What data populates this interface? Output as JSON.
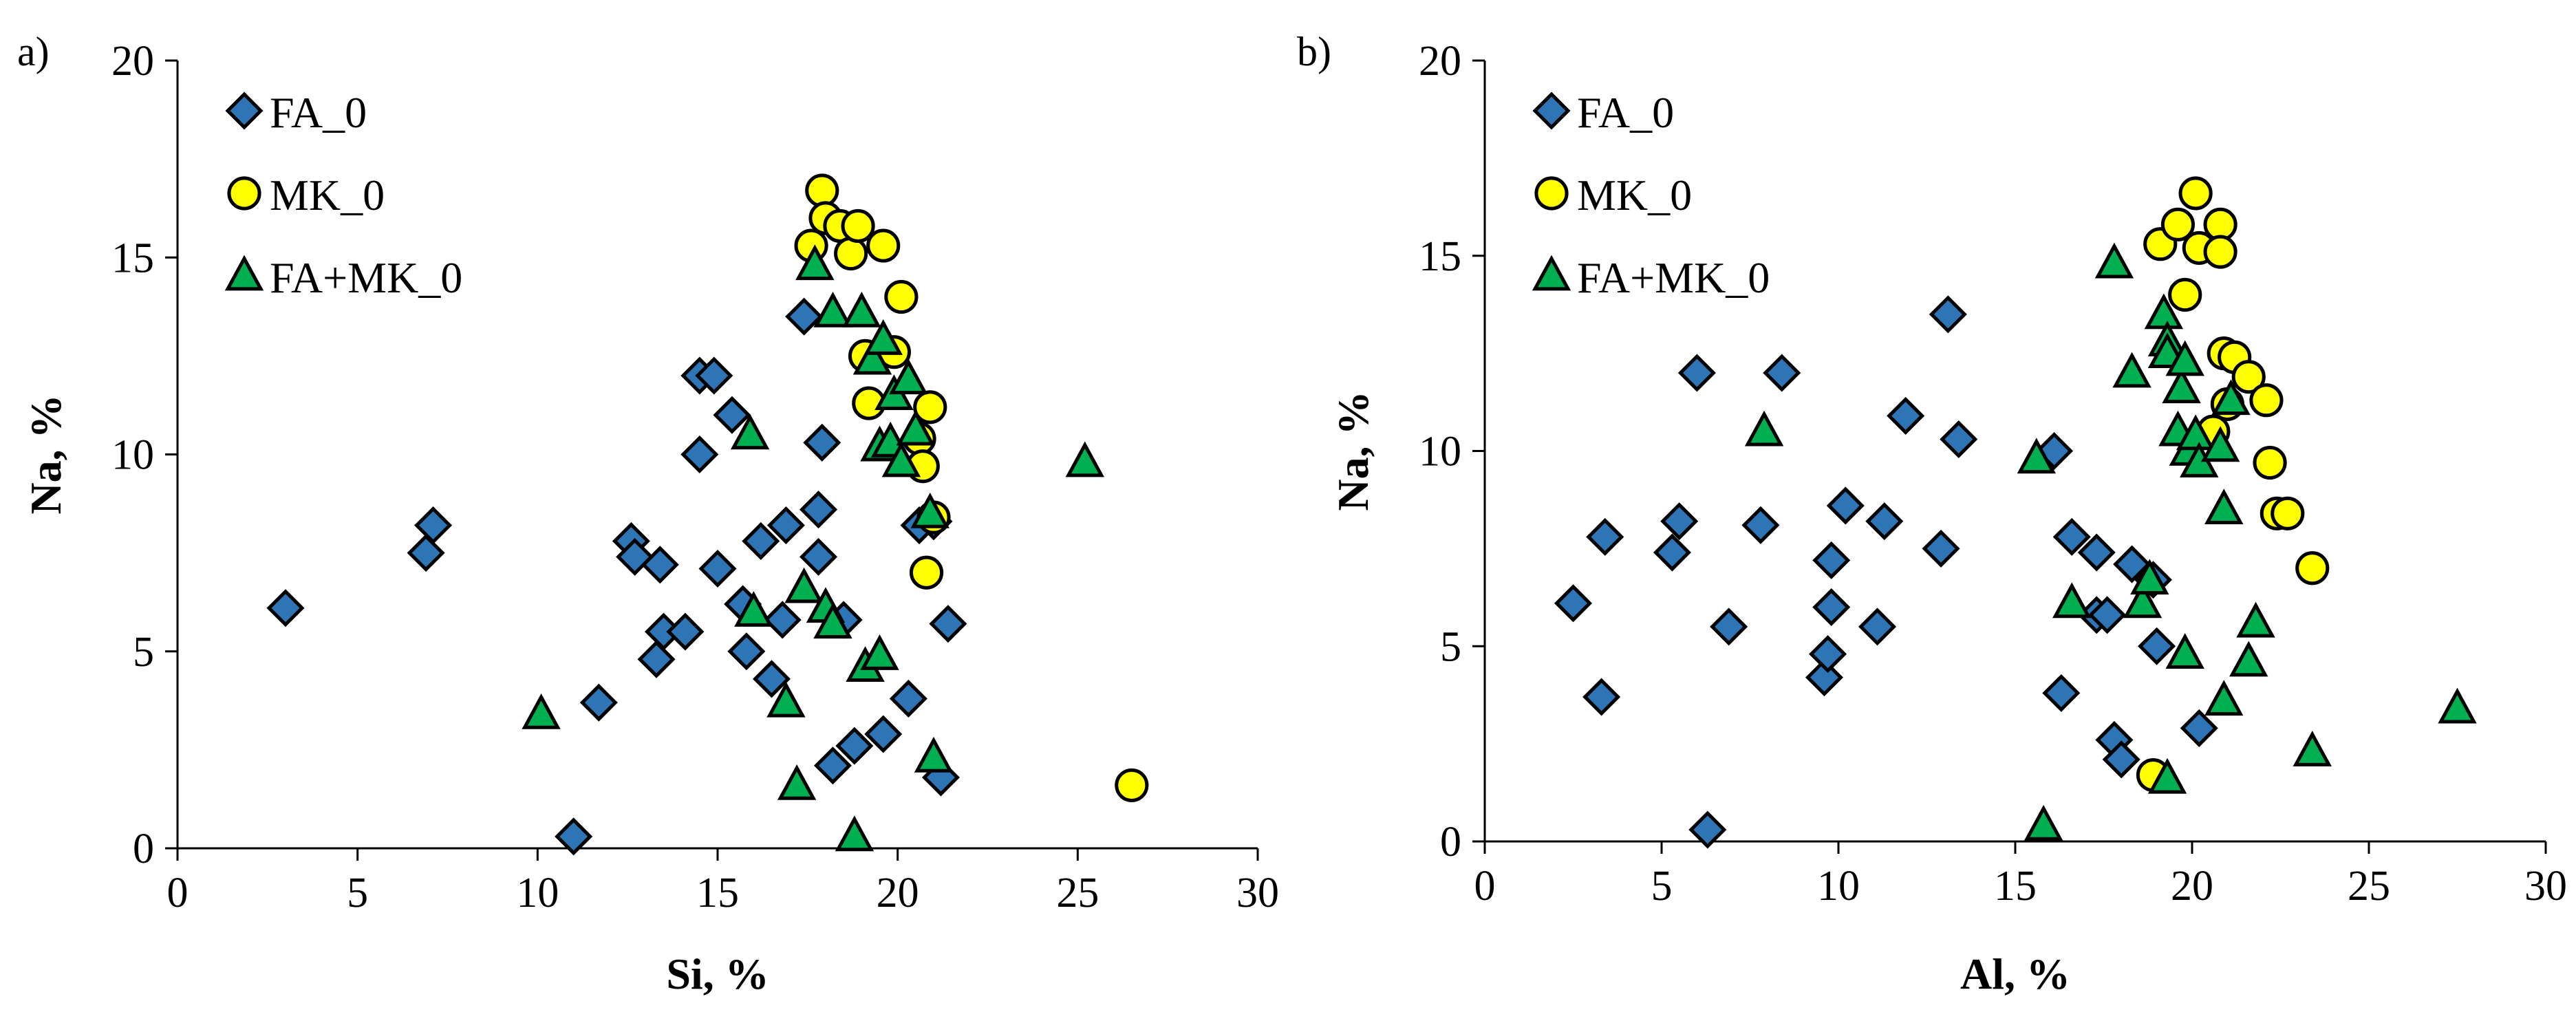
{
  "chart_data": [
    {
      "type": "scatter",
      "panel_label": "a)",
      "xlabel": "Si, %",
      "ylabel": "Na, %",
      "xlim": [
        0,
        30
      ],
      "ylim": [
        0,
        20
      ],
      "xticks": [
        "0",
        "5",
        "10",
        "15",
        "20",
        "25",
        "30"
      ],
      "yticks": [
        "0",
        "5",
        "10",
        "15",
        "20"
      ],
      "legend": [
        "FA_0",
        "MK_0",
        "FA+MK_0"
      ],
      "legend_position": "top-left",
      "series": [
        {
          "name": "FA_0",
          "marker": "diamond",
          "color": "#2E75B6",
          "points": [
            [
              3.0,
              6.1
            ],
            [
              6.9,
              7.5
            ],
            [
              7.1,
              8.2
            ],
            [
              11.0,
              0.3
            ],
            [
              11.7,
              3.7
            ],
            [
              12.6,
              7.8
            ],
            [
              12.7,
              7.4
            ],
            [
              13.3,
              4.8
            ],
            [
              13.4,
              7.2
            ],
            [
              13.5,
              5.5
            ],
            [
              14.1,
              5.5
            ],
            [
              14.5,
              10.0
            ],
            [
              14.5,
              12.0
            ],
            [
              14.9,
              12.0
            ],
            [
              15.0,
              7.1
            ],
            [
              15.4,
              11.0
            ],
            [
              15.7,
              6.2
            ],
            [
              15.8,
              5.0
            ],
            [
              16.2,
              7.8
            ],
            [
              16.5,
              4.3
            ],
            [
              16.8,
              5.8
            ],
            [
              16.9,
              8.2
            ],
            [
              17.4,
              13.5
            ],
            [
              17.8,
              7.4
            ],
            [
              17.8,
              8.6
            ],
            [
              17.9,
              10.3
            ],
            [
              18.2,
              2.1
            ],
            [
              18.5,
              5.8
            ],
            [
              18.8,
              2.6
            ],
            [
              19.6,
              2.9
            ],
            [
              20.3,
              3.8
            ],
            [
              20.6,
              8.2
            ],
            [
              21.0,
              8.3
            ],
            [
              21.2,
              1.8
            ],
            [
              21.4,
              5.7
            ]
          ]
        },
        {
          "name": "MK_0",
          "marker": "circle",
          "color": "#FFFF00",
          "points": [
            [
              17.6,
              15.3
            ],
            [
              17.9,
              16.7
            ],
            [
              18.0,
              16.0
            ],
            [
              18.4,
              15.8
            ],
            [
              18.7,
              15.1
            ],
            [
              18.9,
              15.8
            ],
            [
              19.1,
              12.5
            ],
            [
              19.2,
              11.3
            ],
            [
              19.6,
              15.3
            ],
            [
              19.9,
              12.6
            ],
            [
              20.1,
              14.0
            ],
            [
              20.6,
              10.4
            ],
            [
              20.7,
              9.7
            ],
            [
              20.8,
              7.0
            ],
            [
              20.9,
              11.2
            ],
            [
              21.0,
              8.4
            ],
            [
              26.5,
              1.6
            ]
          ]
        },
        {
          "name": "FA+MK_0",
          "marker": "triangle",
          "color": "#00B050",
          "points": [
            [
              10.1,
              3.4
            ],
            [
              15.9,
              10.5
            ],
            [
              16.0,
              6.0
            ],
            [
              16.9,
              3.7
            ],
            [
              17.2,
              1.6
            ],
            [
              17.4,
              6.6
            ],
            [
              17.7,
              14.8
            ],
            [
              18.0,
              6.1
            ],
            [
              18.2,
              5.7
            ],
            [
              18.2,
              13.6
            ],
            [
              18.8,
              0.3
            ],
            [
              19.0,
              13.6
            ],
            [
              19.1,
              4.6
            ],
            [
              19.3,
              12.4
            ],
            [
              19.5,
              10.2
            ],
            [
              19.5,
              4.9
            ],
            [
              19.6,
              12.9
            ],
            [
              19.8,
              10.3
            ],
            [
              19.9,
              11.5
            ],
            [
              20.1,
              9.8
            ],
            [
              20.3,
              11.9
            ],
            [
              20.5,
              10.6
            ],
            [
              20.9,
              8.5
            ],
            [
              21.0,
              2.3
            ],
            [
              25.2,
              9.8
            ]
          ]
        }
      ]
    },
    {
      "type": "scatter",
      "panel_label": "b)",
      "xlabel": "Al, %",
      "ylabel": "Na, %",
      "xlim": [
        0,
        30
      ],
      "ylim": [
        0,
        20
      ],
      "xticks": [
        "0",
        "5",
        "10",
        "15",
        "20",
        "25",
        "30"
      ],
      "yticks": [
        "0",
        "5",
        "10",
        "15",
        "20"
      ],
      "legend": [
        "FA_0",
        "MK_0",
        "FA+MK_0"
      ],
      "legend_position": "top-left",
      "series": [
        {
          "name": "FA_0",
          "marker": "diamond",
          "color": "#2E75B6",
          "points": [
            [
              2.5,
              6.1
            ],
            [
              3.3,
              3.7
            ],
            [
              3.4,
              7.8
            ],
            [
              5.3,
              7.4
            ],
            [
              5.5,
              8.2
            ],
            [
              6.0,
              12.0
            ],
            [
              6.3,
              0.3
            ],
            [
              6.9,
              5.5
            ],
            [
              7.8,
              8.1
            ],
            [
              8.4,
              12.0
            ],
            [
              9.6,
              4.2
            ],
            [
              9.7,
              4.8
            ],
            [
              9.8,
              7.2
            ],
            [
              9.8,
              6.0
            ],
            [
              10.2,
              8.6
            ],
            [
              11.1,
              5.5
            ],
            [
              11.3,
              8.2
            ],
            [
              11.9,
              10.9
            ],
            [
              12.9,
              7.5
            ],
            [
              13.1,
              13.5
            ],
            [
              13.4,
              10.3
            ],
            [
              16.1,
              10.0
            ],
            [
              16.3,
              3.8
            ],
            [
              16.6,
              7.8
            ],
            [
              17.3,
              7.4
            ],
            [
              17.3,
              5.8
            ],
            [
              17.6,
              5.8
            ],
            [
              17.8,
              2.6
            ],
            [
              18.0,
              2.1
            ],
            [
              18.3,
              7.1
            ],
            [
              18.9,
              6.7
            ],
            [
              19.0,
              5.0
            ],
            [
              20.2,
              2.9
            ]
          ]
        },
        {
          "name": "MK_0",
          "marker": "circle",
          "color": "#FFFF00",
          "points": [
            [
              18.9,
              1.7
            ],
            [
              19.1,
              15.3
            ],
            [
              19.6,
              15.8
            ],
            [
              19.8,
              14.0
            ],
            [
              20.1,
              16.6
            ],
            [
              20.2,
              15.2
            ],
            [
              20.6,
              10.5
            ],
            [
              20.8,
              15.8
            ],
            [
              20.8,
              15.1
            ],
            [
              20.9,
              12.5
            ],
            [
              21.0,
              11.2
            ],
            [
              21.2,
              12.4
            ],
            [
              21.6,
              11.9
            ],
            [
              22.1,
              11.3
            ],
            [
              22.2,
              9.7
            ],
            [
              22.4,
              8.4
            ],
            [
              22.7,
              8.4
            ],
            [
              23.4,
              7.0
            ]
          ]
        },
        {
          "name": "FA+MK_0",
          "marker": "triangle",
          "color": "#00B050",
          "points": [
            [
              7.9,
              10.5
            ],
            [
              15.6,
              9.8
            ],
            [
              15.8,
              0.4
            ],
            [
              16.6,
              6.1
            ],
            [
              17.8,
              14.8
            ],
            [
              18.3,
              12.0
            ],
            [
              18.6,
              6.1
            ],
            [
              18.8,
              6.7
            ],
            [
              19.2,
              13.5
            ],
            [
              19.3,
              12.8
            ],
            [
              19.3,
              12.5
            ],
            [
              19.3,
              1.6
            ],
            [
              19.6,
              10.5
            ],
            [
              19.7,
              11.6
            ],
            [
              19.8,
              4.8
            ],
            [
              19.8,
              12.3
            ],
            [
              19.9,
              10.0
            ],
            [
              20.1,
              10.4
            ],
            [
              20.2,
              9.7
            ],
            [
              20.8,
              10.1
            ],
            [
              20.9,
              8.5
            ],
            [
              20.9,
              3.6
            ],
            [
              21.1,
              11.3
            ],
            [
              21.6,
              4.6
            ],
            [
              21.8,
              5.6
            ],
            [
              23.4,
              2.3
            ],
            [
              27.5,
              3.4
            ]
          ]
        }
      ]
    }
  ]
}
